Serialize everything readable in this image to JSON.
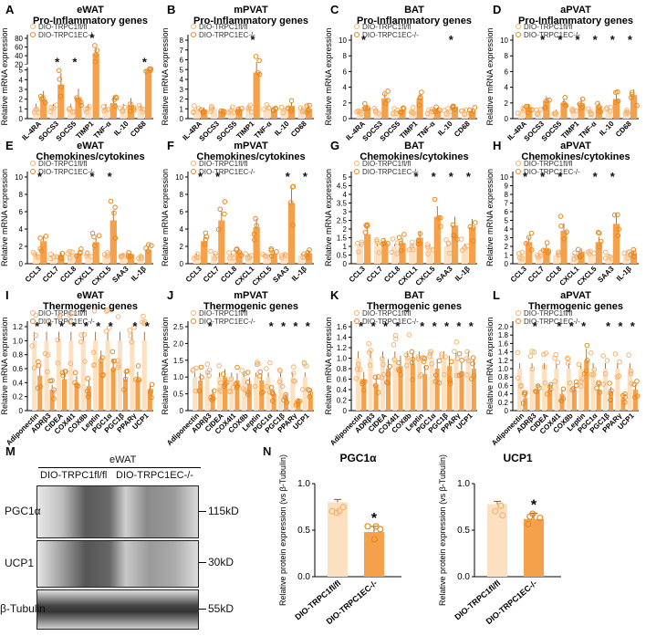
{
  "colors": {
    "ctrl_fill": "#fde0c0",
    "ko_fill": "#f5a04a",
    "ctrl_stroke": "#f7b26e",
    "ko_stroke": "#e8891f",
    "star": "#111111"
  },
  "legend": {
    "ctrl": "DIO-TRPC1fl/fl",
    "ko": "DIO-TRPC1EC-/-"
  },
  "chart_data": [
    {
      "panel": "A",
      "type": "bar",
      "title": "eWAT",
      "subtitle": "Pro-Inflammatory genes",
      "ylabel": "Relative mRNA expression",
      "categories": [
        "IL-4RA",
        "SOCS3",
        "SOCS5",
        "TIMP1",
        "TNF-α",
        "IL-10",
        "CD68"
      ],
      "yticks": [
        "0",
        "1",
        "2",
        "3",
        "4",
        "5",
        "20",
        "40",
        "60",
        "80"
      ],
      "scale": "broken",
      "ylim": [
        0,
        80
      ],
      "break": [
        5,
        20
      ],
      "series": [
        {
          "name": "DIO-TRPC1fl/fl",
          "values": [
            1,
            1,
            1,
            1,
            1,
            1,
            1
          ]
        },
        {
          "name": "DIO-TRPC1EC-/-",
          "values": [
            2.0,
            3.5,
            2.2,
            45,
            1.6,
            1.4,
            8.5
          ]
        }
      ],
      "sig": [
        false,
        true,
        true,
        true,
        false,
        false,
        true
      ]
    },
    {
      "panel": "B",
      "type": "bar",
      "title": "mPVAT",
      "subtitle": "Pro-Inflammatory genes",
      "ylabel": "Relative mRNA expression",
      "categories": [
        "IL-4RA",
        "SOCS3",
        "SOCS5",
        "TIMP1",
        "TNF-α",
        "IL-10",
        "CD68"
      ],
      "yticks": [
        "0",
        "1",
        "2",
        "3",
        "4",
        "5",
        "6",
        "7",
        "8"
      ],
      "ylim": [
        0,
        8
      ],
      "series": [
        {
          "name": "DIO-TRPC1fl/fl",
          "values": [
            1,
            1,
            1,
            1,
            1,
            1,
            1
          ]
        },
        {
          "name": "DIO-TRPC1EC-/-",
          "values": [
            0.9,
            0.8,
            1.0,
            4.7,
            0.8,
            1.3,
            1.0
          ]
        }
      ],
      "sig": [
        false,
        false,
        false,
        true,
        false,
        false,
        false
      ]
    },
    {
      "panel": "C",
      "type": "bar",
      "title": "BAT",
      "subtitle": "Pro-Inflammatory genes",
      "ylabel": "Relative mRNA expression",
      "categories": [
        "IL-4RA",
        "SOCS3",
        "SOCS5",
        "TIMP1",
        "TNF-α",
        "IL-10",
        "CD68"
      ],
      "yticks": [
        "0",
        "2",
        "4",
        "6",
        "8",
        "10"
      ],
      "ylim": [
        0,
        10
      ],
      "series": [
        {
          "name": "DIO-TRPC1fl/fl",
          "values": [
            1,
            1,
            1,
            1,
            1,
            1,
            1
          ]
        },
        {
          "name": "DIO-TRPC1EC-/-",
          "values": [
            1.4,
            2.6,
            1.0,
            2.6,
            1.1,
            1.5,
            1.0
          ]
        }
      ],
      "sig": [
        true,
        false,
        false,
        false,
        false,
        true,
        false
      ]
    },
    {
      "panel": "D",
      "type": "bar",
      "title": "aPVAT",
      "subtitle": "Pro-Inflammatory genes",
      "ylabel": "Relative mRNA expression",
      "categories": [
        "IL-4RA",
        "SOCS3",
        "SOCS5",
        "TIMP1",
        "TNF-α",
        "IL-10",
        "CD68"
      ],
      "yticks": [
        "0",
        "2",
        "4",
        "6",
        "8",
        "10"
      ],
      "ylim": [
        0,
        10
      ],
      "series": [
        {
          "name": "DIO-TRPC1fl/fl",
          "values": [
            1,
            1,
            1,
            1,
            1,
            1,
            1
          ]
        },
        {
          "name": "DIO-TRPC1EC-/-",
          "values": [
            1.4,
            2.3,
            2.0,
            2.0,
            1.6,
            2.5,
            3.0
          ]
        }
      ],
      "sig": [
        false,
        true,
        true,
        true,
        true,
        true,
        true
      ]
    },
    {
      "panel": "E",
      "type": "bar",
      "title": "eWAT",
      "subtitle": "Chemokines/cytokines",
      "ylabel": "Relative mRNA expression",
      "categories": [
        "CCL3",
        "CCL7",
        "CCL8",
        "CXCL1",
        "CXCL5",
        "SAA3",
        "IL-1β"
      ],
      "yticks": [
        "0",
        "2",
        "4",
        "6",
        "8",
        "10"
      ],
      "ylim": [
        0,
        10
      ],
      "series": [
        {
          "name": "DIO-TRPC1fl/fl",
          "values": [
            1,
            1,
            1,
            1,
            1,
            1,
            1
          ]
        },
        {
          "name": "DIO-TRPC1EC-/-",
          "values": [
            2.6,
            1.0,
            1.2,
            2.5,
            5.0,
            1.1,
            1.6
          ]
        }
      ],
      "sig": [
        true,
        false,
        false,
        true,
        true,
        false,
        false
      ]
    },
    {
      "panel": "F",
      "type": "bar",
      "title": "mPVAT",
      "subtitle": "Chemokines/cytokines",
      "ylabel": "Relative mRNA expression",
      "categories": [
        "CCL3",
        "CCL7",
        "CCL8",
        "CXCL1",
        "CXCL5",
        "SAA3",
        "IL-1β"
      ],
      "yticks": [
        "0",
        "2",
        "4",
        "6",
        "8",
        "10"
      ],
      "ylim": [
        0,
        10
      ],
      "series": [
        {
          "name": "DIO-TRPC1fl/fl",
          "values": [
            1,
            1,
            1,
            1,
            1,
            1,
            1
          ]
        },
        {
          "name": "DIO-TRPC1EC-/-",
          "values": [
            2.6,
            5.0,
            1.4,
            4.2,
            1.2,
            7.0,
            1.2
          ]
        }
      ],
      "sig": [
        true,
        true,
        false,
        false,
        false,
        true,
        true
      ]
    },
    {
      "panel": "G",
      "type": "bar",
      "title": "BAT",
      "subtitle": "Chemokines/cytokines",
      "ylabel": "Relative mRNA expression",
      "categories": [
        "CCL3",
        "CCL7",
        "CCL8",
        "CXCL1",
        "CXCL5",
        "SAA3",
        "IL-1β"
      ],
      "yticks": [
        "0",
        "0.5",
        "1",
        "1.5",
        "2",
        "2.5",
        "3",
        "3.5",
        "4",
        "4.5",
        "5"
      ],
      "ylim": [
        0,
        5
      ],
      "series": [
        {
          "name": "DIO-TRPC1fl/fl",
          "values": [
            1,
            1,
            1,
            1,
            1,
            1,
            1
          ]
        },
        {
          "name": "DIO-TRPC1EC-/-",
          "values": [
            1.7,
            1.2,
            1.2,
            1.5,
            2.7,
            2.2,
            2.1
          ]
        }
      ],
      "sig": [
        false,
        false,
        false,
        true,
        true,
        true,
        true
      ]
    },
    {
      "panel": "H",
      "type": "bar",
      "title": "aPVAT",
      "subtitle": "Chemokines/cytokines",
      "ylabel": "Relative mRNA expression",
      "categories": [
        "CCL3",
        "CCL7",
        "CCL8",
        "CXCL1",
        "CXCL5",
        "SAA3",
        "IL-1β"
      ],
      "yticks": [
        "0",
        "1",
        "2",
        "3",
        "4",
        "5",
        "6",
        "7",
        "8",
        "9",
        "10"
      ],
      "ylim": [
        0,
        10
      ],
      "series": [
        {
          "name": "DIO-TRPC1fl/fl",
          "values": [
            1,
            1,
            1,
            1,
            1,
            1,
            1
          ]
        },
        {
          "name": "DIO-TRPC1EC-/-",
          "values": [
            2.5,
            1.8,
            3.8,
            1.4,
            2.5,
            4.6,
            1.2
          ]
        }
      ],
      "sig": [
        true,
        true,
        true,
        false,
        true,
        true,
        false
      ]
    },
    {
      "panel": "I",
      "type": "bar",
      "title": "eWAT",
      "subtitle": "Thermogenic genes",
      "ylabel": "Relative mRNA expression",
      "categories": [
        "Adiponectin",
        "ADRβ3",
        "CIDEA",
        "COX4I1",
        "COX8b",
        "Leptin",
        "PGC1α",
        "PGC1β",
        "PPARγ",
        "UCP1"
      ],
      "yticks": [
        "0",
        "0.2",
        "0.4",
        "0.6",
        "0.8",
        "1.0",
        "1.2"
      ],
      "ylim": [
        0,
        1.2
      ],
      "series": [
        {
          "name": "DIO-TRPC1fl/fl",
          "values": [
            1,
            1,
            1,
            1,
            1,
            1,
            1,
            1,
            1,
            1
          ]
        },
        {
          "name": "DIO-TRPC1EC-/-",
          "values": [
            0.5,
            0.3,
            0.45,
            0.4,
            0.35,
            0.7,
            0.6,
            0.45,
            0.45,
            0.3
          ]
        }
      ],
      "sig": [
        true,
        true,
        true,
        true,
        true,
        true,
        true,
        false,
        true,
        true
      ]
    },
    {
      "panel": "J",
      "type": "bar",
      "title": "mPVAT",
      "subtitle": "Thermogenic genes",
      "ylabel": "Relative mRNA expression",
      "categories": [
        "Adiponectin",
        "ADRβ3",
        "CIDEA",
        "COX4I1",
        "COX8b",
        "Leptin",
        "PGC1α",
        "PGC1β",
        "PPARγ",
        "UCP1"
      ],
      "yticks": [
        "0",
        "0.5",
        "1.0",
        "1.5",
        "2.0",
        "2.5"
      ],
      "ylim": [
        0,
        2.5
      ],
      "series": [
        {
          "name": "DIO-TRPC1fl/fl",
          "values": [
            1,
            1,
            1,
            1,
            1,
            1,
            1,
            1,
            1,
            1
          ]
        },
        {
          "name": "DIO-TRPC1EC-/-",
          "values": [
            0.9,
            0.5,
            1.0,
            0.9,
            0.8,
            0.9,
            0.5,
            0.4,
            0.3,
            0.45
          ]
        }
      ],
      "sig": [
        false,
        true,
        false,
        false,
        false,
        false,
        true,
        true,
        true,
        true
      ]
    },
    {
      "panel": "K",
      "type": "bar",
      "title": "BAT",
      "subtitle": "Thermogenic genes",
      "ylabel": "Relative mRNA expression",
      "categories": [
        "Adiponectin",
        "ADRβ3",
        "CIDEA",
        "COX4I1",
        "COX8b",
        "Leptin",
        "PGC1α",
        "PGC1β",
        "PPARγ",
        "UCP1"
      ],
      "yticks": [
        "0",
        "0.2",
        "0.4",
        "0.6",
        "0.8",
        "1.0",
        "1.2",
        "1.4",
        "1.6"
      ],
      "ylim": [
        0,
        1.6
      ],
      "series": [
        {
          "name": "DIO-TRPC1fl/fl",
          "values": [
            1,
            1,
            1,
            1,
            1,
            1,
            1,
            1,
            1,
            1
          ]
        },
        {
          "name": "DIO-TRPC1EC-/-",
          "values": [
            0.6,
            0.5,
            0.8,
            0.85,
            0.9,
            0.7,
            0.8,
            0.85,
            0.75,
            0.8
          ]
        }
      ],
      "sig": [
        true,
        true,
        true,
        true,
        false,
        true,
        true,
        true,
        true,
        true
      ]
    },
    {
      "panel": "L",
      "type": "bar",
      "title": "aPVAT",
      "subtitle": "Thermogenic genes",
      "ylabel": "Relative mRNA expression",
      "categories": [
        "Adiponectin",
        "ADRβ3",
        "CIDEA",
        "COX4I1",
        "COX8b",
        "Leptin",
        "PGC1α",
        "PGC1β",
        "PPARγ",
        "UCP1"
      ],
      "yticks": [
        "0",
        "0.2",
        "0.4",
        "0.6",
        "0.8",
        "1.0",
        "1.2",
        "1.4",
        "1.6",
        "1.8",
        "2.0"
      ],
      "ylim": [
        0,
        2.0
      ],
      "series": [
        {
          "name": "DIO-TRPC1fl/fl",
          "values": [
            1,
            1,
            1,
            1,
            1,
            1,
            1,
            1,
            1,
            1
          ]
        },
        {
          "name": "DIO-TRPC1EC-/-",
          "values": [
            0.3,
            0.5,
            0.5,
            0.4,
            0.5,
            1.2,
            0.5,
            0.45,
            0.3,
            0.5
          ]
        }
      ],
      "sig": [
        false,
        true,
        false,
        true,
        true,
        true,
        false,
        true,
        true,
        true
      ]
    },
    {
      "panel": "N1",
      "type": "bar",
      "title": "PGC1α",
      "ylabel": "Relative protein expression (vs β-Tubulin)",
      "categories": [
        "DIO-TRPC1fl/fl",
        "DIO-TRPC1EC-/-"
      ],
      "yticks": [
        "0.0",
        "0.5",
        "1.0"
      ],
      "ylim": [
        0,
        1.0
      ],
      "series": [
        {
          "name": "",
          "values": [
            0.8,
            0.48
          ]
        }
      ],
      "sig": [
        false,
        true
      ]
    },
    {
      "panel": "N2",
      "type": "bar",
      "title": "UCP1",
      "ylabel": "Relative protein expression (vs β-Tubulin)",
      "categories": [
        "DIO-TRPC1fl/fl",
        "DIO-TRPC1EC-/-"
      ],
      "yticks": [
        "0.0",
        "0.5",
        "1.0"
      ],
      "ylim": [
        0,
        1.0
      ],
      "series": [
        {
          "name": "",
          "values": [
            0.78,
            0.62
          ]
        }
      ],
      "sig": [
        false,
        true
      ]
    }
  ],
  "blot": {
    "panel": "M",
    "tissue": "eWAT",
    "lane1": "DIO-TRPC1fl/fl",
    "lane2": "DIO-TRPC1EC-/-",
    "rows": [
      {
        "protein": "PGC1α",
        "kd": "115kD"
      },
      {
        "protein": "UCP1",
        "kd": "30kD"
      },
      {
        "protein": "β-Tubulin",
        "kd": "55kD"
      }
    ],
    "panel_n": "N"
  }
}
